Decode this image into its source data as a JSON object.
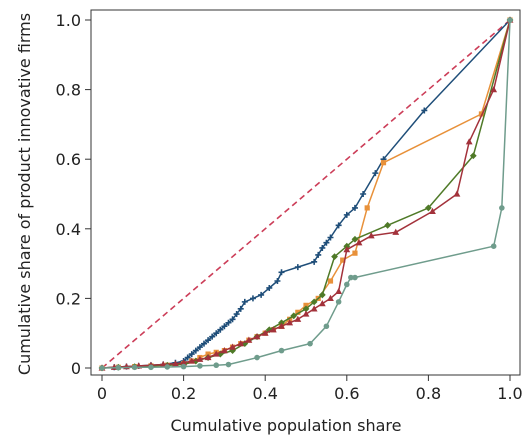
{
  "chart_data": {
    "type": "line",
    "title": "",
    "xlabel": "Cumulative population share",
    "ylabel": "Cumulative share of product innovative firms",
    "xlim": [
      0,
      1
    ],
    "ylim": [
      0,
      1
    ],
    "xticks": [
      0,
      0.2,
      0.4,
      0.6,
      0.8,
      1
    ],
    "yticks": [
      0,
      0.2,
      0.4,
      0.6,
      0.8,
      1
    ],
    "xtick_labels": [
      "0",
      "0.2",
      "0.4",
      "0.6",
      "0.8",
      "1.0"
    ],
    "ytick_labels": [
      "0",
      "0.2",
      "0.4",
      "0.6",
      "0.8",
      "1.0"
    ],
    "grid": false,
    "legend": "none",
    "reference_line": {
      "x": [
        0,
        1
      ],
      "y": [
        0,
        1
      ],
      "color": "#cc3d58",
      "style": "dashed"
    },
    "series": [
      {
        "color": "#1f4e79",
        "marker": "plus",
        "x": [
          0,
          0.03,
          0.06,
          0.09,
          0.12,
          0.15,
          0.18,
          0.2,
          0.21,
          0.22,
          0.23,
          0.24,
          0.25,
          0.26,
          0.27,
          0.28,
          0.29,
          0.3,
          0.31,
          0.32,
          0.33,
          0.34,
          0.35,
          0.37,
          0.39,
          0.41,
          0.43,
          0.44,
          0.48,
          0.52,
          0.53,
          0.54,
          0.55,
          0.56,
          0.58,
          0.6,
          0.62,
          0.64,
          0.67,
          0.69,
          0.79,
          1
        ],
        "y": [
          0,
          0.002,
          0.004,
          0.006,
          0.008,
          0.01,
          0.015,
          0.02,
          0.03,
          0.04,
          0.05,
          0.06,
          0.07,
          0.08,
          0.09,
          0.1,
          0.11,
          0.12,
          0.13,
          0.14,
          0.155,
          0.17,
          0.19,
          0.2,
          0.21,
          0.23,
          0.25,
          0.275,
          0.29,
          0.305,
          0.325,
          0.345,
          0.36,
          0.375,
          0.41,
          0.44,
          0.46,
          0.5,
          0.56,
          0.6,
          0.74,
          1
        ]
      },
      {
        "color": "#e8913a",
        "marker": "square",
        "x": [
          0,
          0.04,
          0.08,
          0.12,
          0.16,
          0.2,
          0.22,
          0.24,
          0.26,
          0.28,
          0.3,
          0.32,
          0.34,
          0.36,
          0.38,
          0.4,
          0.42,
          0.44,
          0.46,
          0.48,
          0.5,
          0.53,
          0.56,
          0.59,
          0.62,
          0.65,
          0.69,
          0.93,
          1
        ],
        "y": [
          0,
          0.002,
          0.004,
          0.006,
          0.008,
          0.012,
          0.02,
          0.03,
          0.04,
          0.045,
          0.05,
          0.06,
          0.07,
          0.08,
          0.09,
          0.1,
          0.11,
          0.12,
          0.14,
          0.16,
          0.18,
          0.2,
          0.25,
          0.31,
          0.33,
          0.46,
          0.59,
          0.73,
          1
        ]
      },
      {
        "color": "#4f7a28",
        "marker": "diamond",
        "x": [
          0,
          0.04,
          0.08,
          0.12,
          0.16,
          0.2,
          0.23,
          0.26,
          0.29,
          0.32,
          0.35,
          0.38,
          0.41,
          0.44,
          0.47,
          0.5,
          0.52,
          0.54,
          0.57,
          0.6,
          0.62,
          0.7,
          0.8,
          0.91,
          1
        ],
        "y": [
          0,
          0.002,
          0.004,
          0.006,
          0.008,
          0.01,
          0.02,
          0.03,
          0.04,
          0.05,
          0.07,
          0.09,
          0.11,
          0.13,
          0.15,
          0.17,
          0.19,
          0.21,
          0.32,
          0.35,
          0.37,
          0.41,
          0.46,
          0.61,
          1
        ]
      },
      {
        "color": "#a3323b",
        "marker": "triangle",
        "x": [
          0,
          0.03,
          0.06,
          0.09,
          0.12,
          0.15,
          0.18,
          0.2,
          0.22,
          0.24,
          0.26,
          0.28,
          0.3,
          0.32,
          0.34,
          0.36,
          0.38,
          0.4,
          0.42,
          0.44,
          0.46,
          0.48,
          0.5,
          0.52,
          0.54,
          0.56,
          0.58,
          0.6,
          0.63,
          0.66,
          0.72,
          0.81,
          0.87,
          0.9,
          0.96,
          1
        ],
        "y": [
          0,
          0.002,
          0.004,
          0.006,
          0.008,
          0.01,
          0.012,
          0.015,
          0.02,
          0.025,
          0.03,
          0.04,
          0.05,
          0.06,
          0.07,
          0.08,
          0.09,
          0.1,
          0.11,
          0.12,
          0.13,
          0.14,
          0.155,
          0.17,
          0.185,
          0.2,
          0.22,
          0.34,
          0.36,
          0.38,
          0.39,
          0.45,
          0.5,
          0.65,
          0.8,
          1
        ]
      },
      {
        "color": "#6f9c8c",
        "marker": "circle",
        "x": [
          0,
          0.04,
          0.08,
          0.12,
          0.16,
          0.2,
          0.24,
          0.28,
          0.31,
          0.38,
          0.44,
          0.51,
          0.55,
          0.58,
          0.6,
          0.61,
          0.62,
          0.96,
          0.98,
          1
        ],
        "y": [
          0,
          0.001,
          0.002,
          0.002,
          0.003,
          0.004,
          0.006,
          0.008,
          0.01,
          0.03,
          0.05,
          0.07,
          0.12,
          0.19,
          0.24,
          0.26,
          0.26,
          0.35,
          0.46,
          1
        ]
      }
    ]
  }
}
